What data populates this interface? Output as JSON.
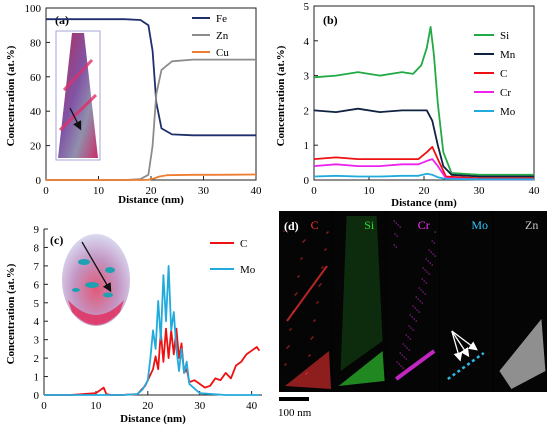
{
  "chart_data": [
    {
      "panel_label": "(a)",
      "type": "line",
      "xlabel": "Distance (nm)",
      "ylabel": "Concentration (at.%)",
      "xlim": [
        0,
        40
      ],
      "ylim": [
        0,
        100
      ],
      "xticks": [
        0,
        10,
        20,
        30,
        40
      ],
      "yticks": [
        0,
        20,
        40,
        60,
        80,
        100
      ],
      "legend_position": "top-right",
      "series": [
        {
          "name": "Fe",
          "color": "#1f2f6b",
          "x": [
            0,
            5,
            10,
            15,
            18,
            19.5,
            20.3,
            21,
            22,
            24,
            28,
            32,
            36,
            40
          ],
          "y": [
            93.5,
            93.5,
            93.5,
            93.5,
            93,
            90,
            75,
            45,
            30,
            26.5,
            26,
            26,
            26,
            26
          ]
        },
        {
          "name": "Zn",
          "color": "#8c8c8c",
          "x": [
            0,
            5,
            10,
            15,
            18,
            19.5,
            20.3,
            21,
            22,
            24,
            28,
            32,
            36,
            40
          ],
          "y": [
            0,
            0,
            0,
            0,
            0.5,
            3,
            20,
            50,
            64,
            69,
            70,
            70,
            70,
            70
          ]
        },
        {
          "name": "Cu",
          "color": "#ed7d31",
          "x": [
            0,
            5,
            10,
            15,
            18,
            19.5,
            20.5,
            21.5,
            23,
            28,
            32,
            36,
            40
          ],
          "y": [
            0,
            0,
            0,
            0,
            0,
            0.1,
            0.8,
            2.0,
            2.8,
            3.0,
            3.0,
            3.1,
            3.2
          ]
        }
      ]
    },
    {
      "panel_label": "(b)",
      "type": "line",
      "xlabel": "Distance (nm)",
      "ylabel": "Concentration (at.%)",
      "xlim": [
        0,
        40
      ],
      "ylim": [
        0,
        5
      ],
      "xticks": [
        0,
        10,
        20,
        30,
        40
      ],
      "yticks": [
        0,
        1,
        2,
        3,
        4,
        5
      ],
      "legend_position": "top-right",
      "series": [
        {
          "name": "Si",
          "color": "#22aa44",
          "x": [
            0,
            4,
            8,
            12,
            16,
            18,
            19.5,
            20.5,
            21.2,
            21.8,
            22.5,
            23.5,
            25,
            30,
            35,
            40
          ],
          "y": [
            2.95,
            3.0,
            3.1,
            3.0,
            3.1,
            3.05,
            3.3,
            3.8,
            4.4,
            3.6,
            2.2,
            0.8,
            0.2,
            0.15,
            0.15,
            0.15
          ]
        },
        {
          "name": "Mn",
          "color": "#0f2240",
          "x": [
            0,
            4,
            8,
            12,
            16,
            19,
            20.5,
            21.5,
            22.5,
            23.5,
            25,
            30,
            35,
            40
          ],
          "y": [
            2.0,
            1.95,
            2.05,
            1.95,
            2.0,
            2.0,
            2.0,
            1.7,
            1.0,
            0.4,
            0.15,
            0.1,
            0.1,
            0.1
          ]
        },
        {
          "name": "C",
          "color": "#ee1111",
          "x": [
            0,
            4,
            8,
            12,
            16,
            19,
            20.5,
            21.5,
            22.5,
            24,
            30,
            40
          ],
          "y": [
            0.6,
            0.65,
            0.6,
            0.6,
            0.6,
            0.6,
            0.8,
            0.95,
            0.6,
            0.1,
            0.05,
            0.05
          ]
        },
        {
          "name": "Cr",
          "color": "#ee22ee",
          "x": [
            0,
            4,
            8,
            12,
            16,
            19,
            20.5,
            21.5,
            22.5,
            24,
            30,
            40
          ],
          "y": [
            0.4,
            0.45,
            0.4,
            0.4,
            0.45,
            0.45,
            0.55,
            0.6,
            0.4,
            0.05,
            0.02,
            0.02
          ]
        },
        {
          "name": "Mo",
          "color": "#22aadd",
          "x": [
            0,
            4,
            8,
            12,
            16,
            19,
            20.5,
            21.5,
            22.5,
            24,
            30,
            40
          ],
          "y": [
            0.1,
            0.12,
            0.1,
            0.1,
            0.12,
            0.12,
            0.18,
            0.15,
            0.08,
            0.03,
            0.02,
            0.02
          ]
        }
      ]
    },
    {
      "panel_label": "(c)",
      "type": "line",
      "xlabel": "Distance (nm)",
      "ylabel": "Concentration (at.%)",
      "xlim": [
        0,
        42
      ],
      "ylim": [
        0,
        9
      ],
      "xticks": [
        0,
        10,
        20,
        30,
        40
      ],
      "yticks": [
        0,
        1,
        2,
        3,
        4,
        5,
        6,
        7,
        8,
        9
      ],
      "legend_position": "top-right",
      "series": [
        {
          "name": "C",
          "color": "#ee1111",
          "x": [
            0,
            5,
            10,
            11.5,
            12,
            13,
            15,
            18,
            19.5,
            20,
            21,
            21.5,
            22,
            22.5,
            23,
            23.5,
            24,
            24.5,
            25,
            25.5,
            26,
            26.5,
            27,
            27.5,
            28,
            29,
            30,
            31,
            32,
            33,
            34,
            35,
            36,
            37,
            38,
            39,
            40,
            41,
            41.5
          ],
          "y": [
            0,
            0,
            0.1,
            0.4,
            0.05,
            0,
            0,
            0.05,
            0.5,
            0.8,
            1.4,
            2.1,
            1.4,
            3.4,
            1.8,
            3.6,
            2.0,
            3.5,
            2.2,
            3.6,
            2.0,
            2.8,
            1.2,
            1.4,
            0.7,
            0.8,
            0.6,
            0.4,
            0.5,
            0.9,
            0.8,
            1.2,
            0.9,
            1.6,
            1.8,
            2.2,
            2.4,
            2.6,
            2.4
          ]
        },
        {
          "name": "Mo",
          "color": "#22aadd",
          "x": [
            0,
            5,
            10,
            15,
            18,
            19,
            20,
            20.5,
            21,
            21.5,
            22,
            22.5,
            23,
            23.5,
            24,
            24.5,
            25,
            25.5,
            26,
            26.5,
            27,
            27.5,
            28,
            30,
            35,
            40,
            41.5
          ],
          "y": [
            0,
            0,
            0,
            0,
            0.05,
            0.3,
            0.8,
            2.0,
            3.5,
            2.5,
            5.1,
            3.0,
            6.5,
            4.0,
            7.0,
            3.5,
            4.5,
            2.5,
            1.3,
            2.5,
            1.2,
            1.8,
            0.6,
            0.1,
            0,
            0,
            0
          ]
        }
      ]
    },
    {
      "panel_label": "(d)",
      "type": "other",
      "channels": [
        {
          "name": "C",
          "label_color": "#ff3333"
        },
        {
          "name": "Si",
          "label_color": "#33dd33"
        },
        {
          "name": "Cr",
          "label_color": "#ff33ff"
        },
        {
          "name": "Mo",
          "label_color": "#33ccff"
        },
        {
          "name": "Zn",
          "label_color": "#cccccc"
        }
      ],
      "scale_bar_label": "100 nm"
    }
  ]
}
